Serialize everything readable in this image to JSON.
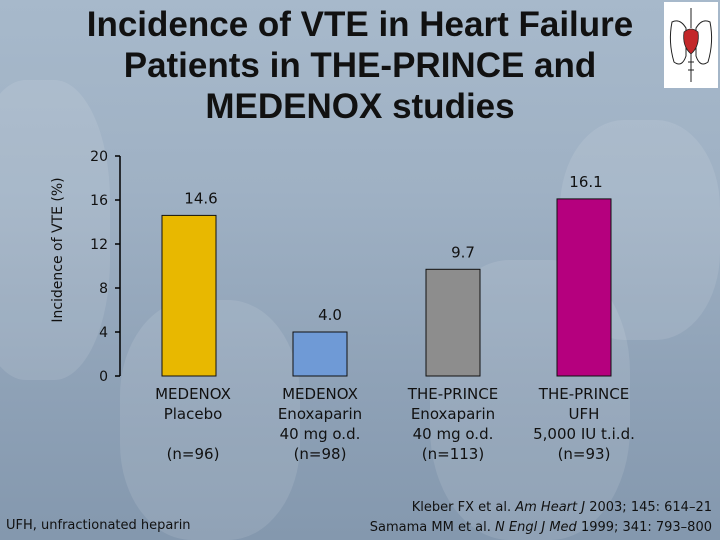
{
  "title": "Incidence of VTE in Heart Failure Patients in THE-PRINCE and MEDENOX studies",
  "footnote": "UFH, unfractionated heparin",
  "references": [
    {
      "authors": "Kleber FX et al.",
      "journal": "Am Heart J",
      "citation": "2003; 145: 614–21"
    },
    {
      "authors": "Samama MM et al.",
      "journal": "N Engl J Med",
      "citation": "1999; 341: 793–800"
    }
  ],
  "chart_data": {
    "type": "bar",
    "ylabel": "Incidence of VTE (%)",
    "ylim": [
      0,
      20
    ],
    "yticks": [
      "0",
      "4",
      "8",
      "12",
      "16",
      "20"
    ],
    "categories": [
      {
        "lines": [
          "MEDENOX",
          "Placebo",
          "",
          "(n=96)"
        ]
      },
      {
        "lines": [
          "MEDENOX",
          "Enoxaparin",
          "40 mg o.d.",
          "(n=98)"
        ]
      },
      {
        "lines": [
          "THE-PRINCE",
          "Enoxaparin",
          "40 mg o.d.",
          "(n=113)"
        ]
      },
      {
        "lines": [
          "THE-PRINCE",
          "UFH",
          "5,000 IU t.i.d.",
          "(n=93)"
        ]
      }
    ],
    "values": [
      14.6,
      4.0,
      9.7,
      16.1
    ],
    "labels": [
      "14.6",
      "4.0",
      "9.7",
      "16.1"
    ],
    "colors": [
      "#e8b800",
      "#6f9ad6",
      "#8d8d8d",
      "#b5007e"
    ],
    "grid": false
  }
}
